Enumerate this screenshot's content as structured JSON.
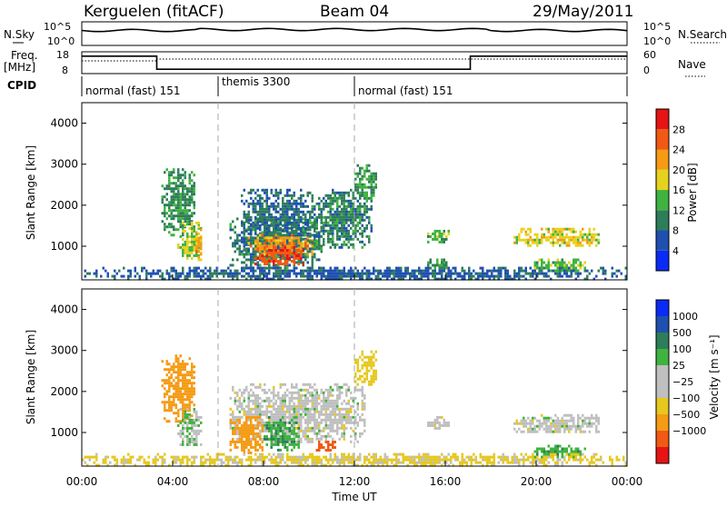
{
  "header": {
    "title": "Kerguelen (fitACF)",
    "beam": "Beam 04",
    "date": "29/May/2011"
  },
  "top_panels": {
    "nsky_label": "N.Sky",
    "nsearch_label": "N.Search",
    "noise_ticks": [
      "10^5",
      "10^0"
    ],
    "freq_label": "Freq.",
    "freq_unit": "[MHz]",
    "freq_ticks": [
      "18",
      "8"
    ],
    "nave_label": "Nave",
    "nave_ticks": [
      "60",
      "0"
    ],
    "cpid_label": "CPID",
    "cpid_segments": [
      {
        "label": "normal (fast) 151",
        "start": 0,
        "end": 6
      },
      {
        "label": "themis 3300",
        "start": 6,
        "end": 12
      },
      {
        "label": "normal (fast) 151",
        "start": 12,
        "end": 24
      }
    ],
    "freq_series": [
      [
        0,
        16
      ],
      [
        3.3,
        16
      ],
      [
        3.3,
        10
      ],
      [
        17.1,
        10
      ],
      [
        17.1,
        16
      ],
      [
        24,
        16
      ]
    ],
    "nave_series": [
      [
        0,
        35
      ],
      [
        3.3,
        35
      ],
      [
        3.3,
        40
      ],
      [
        24,
        40
      ]
    ]
  },
  "colors": {
    "power": [
      "#0a2bf5",
      "#1f50b0",
      "#2e7d5a",
      "#3fb33f",
      "#e6d21e",
      "#f59b14",
      "#f05a14",
      "#e61414"
    ],
    "velocity": [
      "#e61414",
      "#f05a14",
      "#f59b14",
      "#e6c81e",
      "#bfbfbf",
      "#bfbfbf",
      "#3fb33f",
      "#2e7d5a",
      "#1f50b0",
      "#0a2bf5"
    ],
    "ground_scatter": "#bfbfbf"
  },
  "chart_data": [
    {
      "type": "heatmap",
      "name": "power",
      "xlabel": "",
      "ylabel": "Slant Range [km]",
      "colorbar_label": "Power [dB]",
      "colorbar_ticks": [
        "4",
        "8",
        "12",
        "16",
        "20",
        "24",
        "28"
      ],
      "xlim": [
        0,
        24
      ],
      "ylim": [
        180,
        4500
      ],
      "yticks": [
        "1000",
        "2000",
        "3000",
        "4000"
      ],
      "regions": [
        {
          "t0": 3.5,
          "t1": 5.0,
          "r0": 1300,
          "r1": 2900,
          "v": 11
        },
        {
          "t0": 4.2,
          "t1": 5.3,
          "r0": 700,
          "r1": 1600,
          "v": 16
        },
        {
          "t0": 5.0,
          "t1": 5.3,
          "r0": 700,
          "r1": 1500,
          "v": 22
        },
        {
          "t0": 6.5,
          "t1": 10.6,
          "r0": 450,
          "r1": 1700,
          "v": 10
        },
        {
          "t0": 7.0,
          "t1": 10.0,
          "r0": 900,
          "r1": 2400,
          "v": 8
        },
        {
          "t0": 7.3,
          "t1": 10.2,
          "r0": 800,
          "r1": 1300,
          "v": 22
        },
        {
          "t0": 7.6,
          "t1": 9.8,
          "r0": 550,
          "r1": 1000,
          "v": 27
        },
        {
          "t0": 10.0,
          "t1": 12.8,
          "r0": 1000,
          "r1": 2400,
          "v": 10
        },
        {
          "t0": 12.0,
          "t1": 13.0,
          "r0": 2200,
          "r1": 3000,
          "v": 12
        },
        {
          "t0": 15.2,
          "t1": 16.2,
          "r0": 1100,
          "r1": 1400,
          "v": 14
        },
        {
          "t0": 15.2,
          "t1": 16.2,
          "r0": 450,
          "r1": 700,
          "v": 12
        },
        {
          "t0": 19.0,
          "t1": 22.8,
          "r0": 1000,
          "r1": 1450,
          "v": 18
        },
        {
          "t0": 19.8,
          "t1": 22.2,
          "r0": 400,
          "r1": 700,
          "v": 14
        },
        {
          "t0": 0.0,
          "t1": 24.0,
          "r0": 220,
          "r1": 500,
          "v": 7
        }
      ]
    },
    {
      "type": "heatmap",
      "name": "velocity",
      "xlabel": "Time UT",
      "ylabel": "Slant Range [km]",
      "colorbar_label": "Velocity [m s⁻¹]",
      "colorbar_ticks": [
        "1000",
        "500",
        "100",
        "25",
        "−25",
        "−100",
        "−500",
        "−1000"
      ],
      "xlim": [
        0,
        24
      ],
      "ylim": [
        180,
        4500
      ],
      "yticks": [
        "1000",
        "2000",
        "3000",
        "4000"
      ],
      "xticks": [
        "00:00",
        "04:00",
        "08:00",
        "12:00",
        "16:00",
        "20:00",
        "00:00"
      ],
      "regions": [
        {
          "t0": 3.5,
          "t1": 5.0,
          "r0": 1300,
          "r1": 2900,
          "v": -150
        },
        {
          "t0": 4.2,
          "t1": 5.3,
          "r0": 700,
          "r1": 1600,
          "v": 20
        },
        {
          "t0": 6.5,
          "t1": 12.5,
          "r0": 800,
          "r1": 2200,
          "v": 0
        },
        {
          "t0": 6.5,
          "t1": 8.0,
          "r0": 500,
          "r1": 1400,
          "v": -150
        },
        {
          "t0": 8.0,
          "t1": 9.6,
          "r0": 600,
          "r1": 1400,
          "v": 90
        },
        {
          "t0": 10.3,
          "t1": 11.2,
          "r0": 550,
          "r1": 800,
          "v": -700
        },
        {
          "t0": 12.0,
          "t1": 13.0,
          "r0": 2200,
          "r1": 3000,
          "v": -60
        },
        {
          "t0": 15.2,
          "t1": 16.2,
          "r0": 1100,
          "r1": 1400,
          "v": 0
        },
        {
          "t0": 19.0,
          "t1": 22.8,
          "r0": 1000,
          "r1": 1450,
          "v": 0
        },
        {
          "t0": 19.8,
          "t1": 22.2,
          "r0": 400,
          "r1": 700,
          "v": 80
        },
        {
          "t0": 0.0,
          "t1": 24.0,
          "r0": 220,
          "r1": 500,
          "v": -40
        }
      ]
    }
  ]
}
